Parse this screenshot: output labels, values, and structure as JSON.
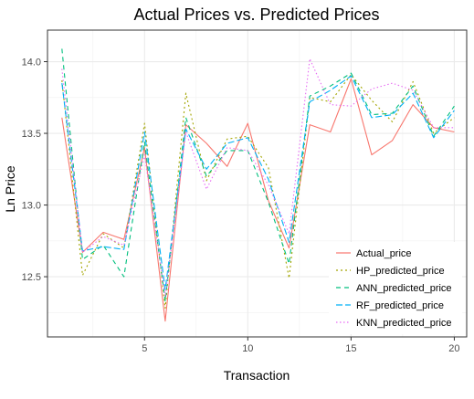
{
  "chart_data": {
    "type": "line",
    "title": "Actual Prices vs. Predicted Prices",
    "xlabel": "Transaction",
    "ylabel": "Ln Price",
    "xlim": [
      0.3,
      20.6
    ],
    "ylim": [
      12.08,
      14.22
    ],
    "xticks": [
      5,
      10,
      15,
      20
    ],
    "yticks": [
      12.5,
      13.0,
      13.5,
      14.0
    ],
    "ytick_labels": [
      "12.5",
      "13.0",
      "13.5",
      "14.0"
    ],
    "grid": true,
    "legend_position": "bottom-right",
    "x": [
      1,
      2,
      3,
      4,
      5,
      6,
      7,
      8,
      9,
      10,
      11,
      12,
      13,
      14,
      15,
      16,
      17,
      18,
      19,
      20
    ],
    "series": [
      {
        "name": "Actual_price",
        "color": "#F8766D",
        "dash": "solid",
        "values": [
          13.61,
          12.67,
          12.81,
          12.76,
          13.4,
          12.19,
          13.56,
          13.43,
          13.27,
          13.57,
          13.03,
          12.7,
          13.56,
          13.51,
          13.88,
          13.35,
          13.45,
          13.7,
          13.54,
          13.51
        ]
      },
      {
        "name": "HP_predicted_price",
        "color": "#A3A500",
        "dash": "dotted",
        "values": [
          13.87,
          12.51,
          12.8,
          12.7,
          13.57,
          12.28,
          13.78,
          13.17,
          13.46,
          13.48,
          13.26,
          12.49,
          13.75,
          13.72,
          13.91,
          13.73,
          13.58,
          13.86,
          13.5,
          13.61
        ]
      },
      {
        "name": "ANN_predicted_price",
        "color": "#00BF7D",
        "dash": "dashed",
        "values": [
          14.09,
          12.62,
          12.72,
          12.5,
          13.44,
          12.33,
          13.61,
          13.2,
          13.38,
          13.38,
          13.02,
          12.59,
          13.76,
          13.83,
          13.92,
          13.63,
          13.64,
          13.83,
          13.48,
          13.69
        ]
      },
      {
        "name": "RF_predicted_price",
        "color": "#00B0F6",
        "dash": "longdash",
        "values": [
          13.85,
          12.68,
          12.71,
          12.69,
          13.51,
          12.41,
          13.53,
          13.25,
          13.43,
          13.47,
          13.18,
          12.74,
          13.72,
          13.8,
          13.9,
          13.61,
          13.63,
          13.78,
          13.47,
          13.66
        ]
      },
      {
        "name": "KNN_predicted_price",
        "color": "#E76BF3",
        "dash": "dotted-fine",
        "values": [
          13.95,
          12.67,
          12.78,
          12.72,
          13.35,
          12.36,
          13.51,
          13.11,
          13.4,
          13.38,
          13.14,
          12.8,
          14.02,
          13.7,
          13.69,
          13.81,
          13.85,
          13.8,
          13.54,
          13.54
        ]
      }
    ]
  }
}
